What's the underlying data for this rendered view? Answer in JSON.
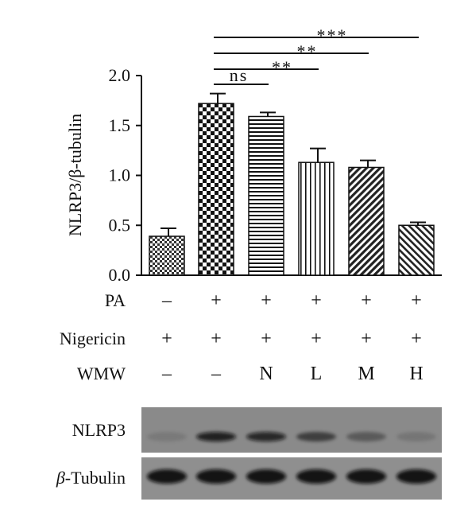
{
  "chart_data": {
    "type": "bar",
    "ylabel": "NLRP3/β-tubulin",
    "ylim": [
      0,
      2.0
    ],
    "yticks": [
      "0.0",
      "0.5",
      "1.0",
      "1.5",
      "2.0"
    ],
    "grid": false,
    "bars": [
      {
        "value": 0.39,
        "error": 0.08,
        "pattern": "small-checker",
        "color": "#333333"
      },
      {
        "value": 1.72,
        "error": 0.1,
        "pattern": "big-checker",
        "color": "#111111"
      },
      {
        "value": 1.59,
        "error": 0.04,
        "pattern": "horizontal",
        "color": "#111111"
      },
      {
        "value": 1.13,
        "error": 0.14,
        "pattern": "vertical",
        "color": "#111111"
      },
      {
        "value": 1.08,
        "error": 0.07,
        "pattern": "diag-right",
        "color": "#222222"
      },
      {
        "value": 0.5,
        "error": 0.03,
        "pattern": "diag-left",
        "color": "#222222"
      }
    ],
    "treatment_rows": [
      {
        "label": "PA",
        "values": [
          "–",
          "+",
          "+",
          "+",
          "+",
          "+"
        ]
      },
      {
        "label": "Nigericin",
        "values": [
          "+",
          "+",
          "+",
          "+",
          "+",
          "+"
        ]
      },
      {
        "label": "WMW",
        "values": [
          "–",
          "–",
          "N",
          "L",
          "M",
          "H"
        ]
      }
    ],
    "significance": [
      {
        "from": 1,
        "to": 2,
        "label": "ns"
      },
      {
        "from": 1,
        "to": 3,
        "label": "**"
      },
      {
        "from": 1,
        "to": 4,
        "label": "**"
      },
      {
        "from": 1,
        "to": 5,
        "label": "***"
      }
    ]
  },
  "blot": {
    "rows": [
      {
        "label_prefix": "",
        "label_main": "NLRP3",
        "band_intensity": [
          0.12,
          0.85,
          0.8,
          0.55,
          0.35,
          0.15
        ]
      },
      {
        "label_prefix": "β",
        "label_main": "-Tubulin",
        "band_intensity": [
          0.95,
          0.95,
          0.95,
          0.95,
          0.95,
          0.95
        ]
      }
    ]
  }
}
